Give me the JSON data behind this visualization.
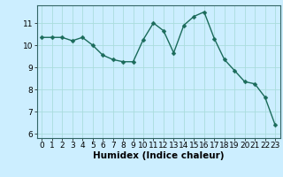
{
  "x": [
    0,
    1,
    2,
    3,
    4,
    5,
    6,
    7,
    8,
    9,
    10,
    11,
    12,
    13,
    14,
    15,
    16,
    17,
    18,
    19,
    20,
    21,
    22,
    23
  ],
  "y": [
    10.35,
    10.35,
    10.35,
    10.2,
    10.35,
    10.0,
    9.55,
    9.35,
    9.25,
    9.25,
    10.25,
    11.0,
    10.65,
    9.65,
    10.9,
    11.3,
    11.5,
    10.3,
    9.35,
    8.85,
    8.35,
    8.25,
    7.65,
    6.4
  ],
  "line_color": "#1a6b5a",
  "marker": "D",
  "marker_size": 2.5,
  "bg_color": "#cceeff",
  "grid_color": "#aadddd",
  "xlabel": "Humidex (Indice chaleur)",
  "ylim": [
    5.8,
    11.8
  ],
  "xlim": [
    -0.5,
    23.5
  ],
  "yticks": [
    6,
    7,
    8,
    9,
    10,
    11
  ],
  "xticks": [
    0,
    1,
    2,
    3,
    4,
    5,
    6,
    7,
    8,
    9,
    10,
    11,
    12,
    13,
    14,
    15,
    16,
    17,
    18,
    19,
    20,
    21,
    22,
    23
  ],
  "tick_label_size": 6.5,
  "xlabel_size": 7.5,
  "linewidth": 1.0
}
